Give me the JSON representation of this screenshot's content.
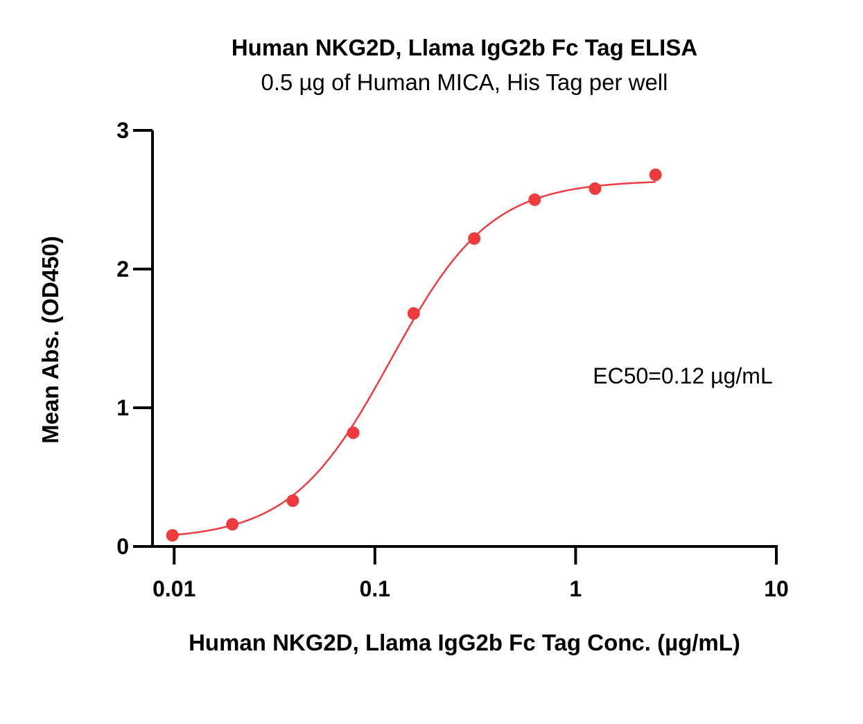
{
  "chart_data": {
    "type": "scatter",
    "title": "Human NKG2D, Llama IgG2b Fc Tag ELISA",
    "subtitle": "0.5 µg of Human MICA, His Tag per well",
    "xlabel": "Human NKG2D, Llama IgG2b Fc Tag Conc. (µg/mL)",
    "ylabel": "Mean Abs. (OD450)",
    "x_scale": "log",
    "xlim": [
      0.0078,
      10
    ],
    "ylim": [
      0,
      3
    ],
    "x_ticks": [
      0.01,
      0.1,
      1,
      10
    ],
    "x_tick_labels": [
      "0.01",
      "0.1",
      "1",
      "10"
    ],
    "y_ticks": [
      0,
      1,
      2,
      3
    ],
    "y_tick_labels": [
      "0",
      "1",
      "2",
      "3"
    ],
    "grid": false,
    "series": [
      {
        "x": [
          0.0098,
          0.0195,
          0.039,
          0.078,
          0.156,
          0.3125,
          0.625,
          1.25,
          2.5
        ],
        "y": [
          0.08,
          0.16,
          0.33,
          0.82,
          1.68,
          2.22,
          2.5,
          2.58,
          2.68
        ]
      }
    ],
    "fit_curve": {
      "model": "4PL",
      "bottom": 0.05,
      "top": 2.64,
      "ec50": 0.12,
      "hill": 1.75,
      "x_range": [
        0.0098,
        2.5
      ]
    },
    "annotations": [
      {
        "text": "EC50=0.12 µg/mL"
      }
    ],
    "colors": {
      "series": "#ef3b3f",
      "axis": "#000000"
    }
  }
}
